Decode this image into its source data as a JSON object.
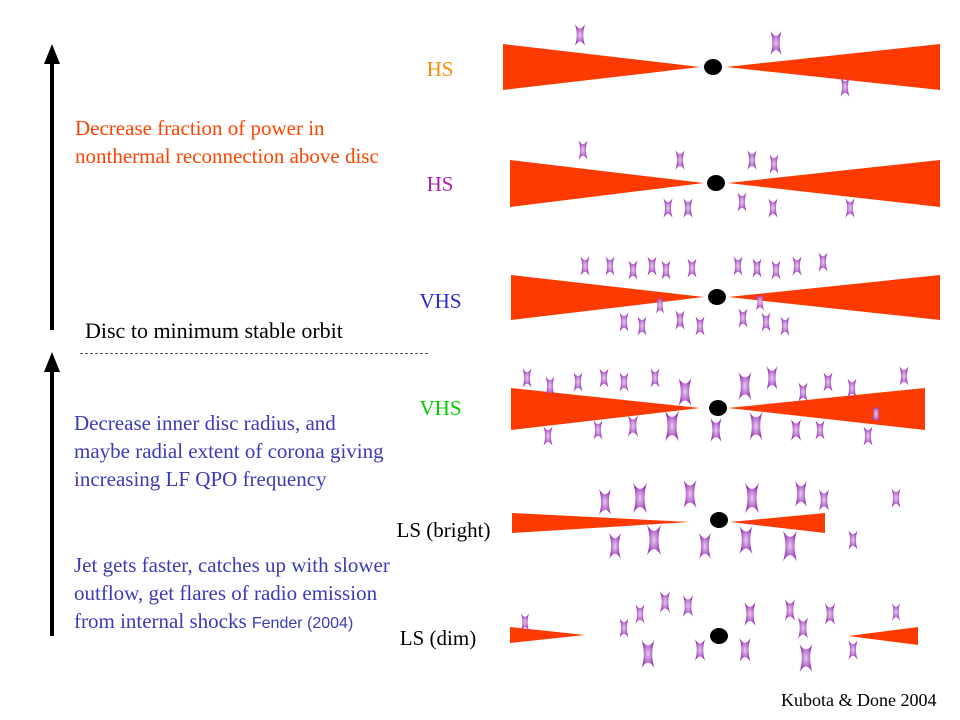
{
  "colors": {
    "disc": "#ff3a00",
    "flare": "#a040c0",
    "upper_text": "#ff4400",
    "lower_text": "#3b3bb8",
    "hs1": "#ff8c00",
    "hs2": "#b020b0",
    "vhs1": "#2a2ad0",
    "vhs2": "#00cc00",
    "ls": "#000000"
  },
  "text": {
    "upper_caption": "Decrease fraction of power in nonthermal reconnection above disc",
    "boundary_label": "Disc to minimum stable orbit",
    "lower_caption_1": "Decrease inner disc radius, and maybe radial extent of corona giving increasing LF QPO frequency",
    "lower_caption_2": "Jet gets faster, catches up with slower outflow, get flares of radio emission from internal shocks",
    "lower_caption_2_ref": "Fender (2004)",
    "credit": "Kubota & Done 2004"
  },
  "states": [
    {
      "label": "HS"
    },
    {
      "label": "HS"
    },
    {
      "label": "VHS"
    },
    {
      "label": "VHS"
    },
    {
      "label": "LS (bright)"
    },
    {
      "label": "LS (dim)"
    }
  ]
}
